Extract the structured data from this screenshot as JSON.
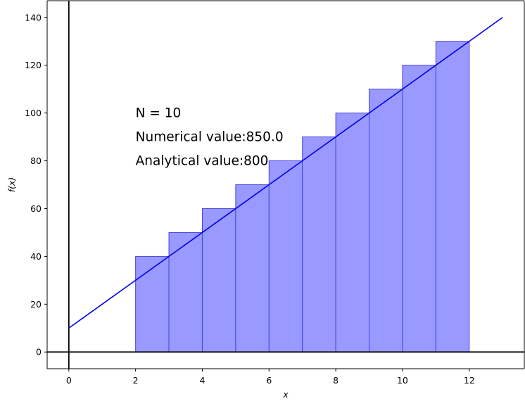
{
  "chart_data": {
    "type": "bar",
    "title": "",
    "xlabel": "x",
    "ylabel": "f(x)",
    "xlim": [
      -0.65,
      13.65
    ],
    "ylim": [
      -7,
      147
    ],
    "xticks": [
      0,
      2,
      4,
      6,
      8,
      10,
      12
    ],
    "yticks": [
      0,
      20,
      40,
      60,
      80,
      100,
      120,
      140
    ],
    "grid": false,
    "bars": {
      "name": "",
      "left_edges": [
        2,
        3,
        4,
        5,
        6,
        7,
        8,
        9,
        10,
        11
      ],
      "width": 1,
      "values": [
        40,
        50,
        60,
        70,
        80,
        90,
        100,
        110,
        120,
        130
      ],
      "fill_color": "#9999ff",
      "edge_color": "#4444dd"
    },
    "line": {
      "name": "",
      "x": [
        0,
        13
      ],
      "y": [
        10,
        140
      ],
      "color": "#0000ee"
    },
    "reference_lines": {
      "x_zero": true,
      "y_zero": true,
      "color": "#000000"
    },
    "annotations": [
      {
        "text": "N = 10",
        "x": 2,
        "y": 100
      },
      {
        "text": "Numerical value:850.0",
        "x": 2,
        "y": 90
      },
      {
        "text": "Analytical value:800",
        "x": 2,
        "y": 80
      }
    ]
  }
}
